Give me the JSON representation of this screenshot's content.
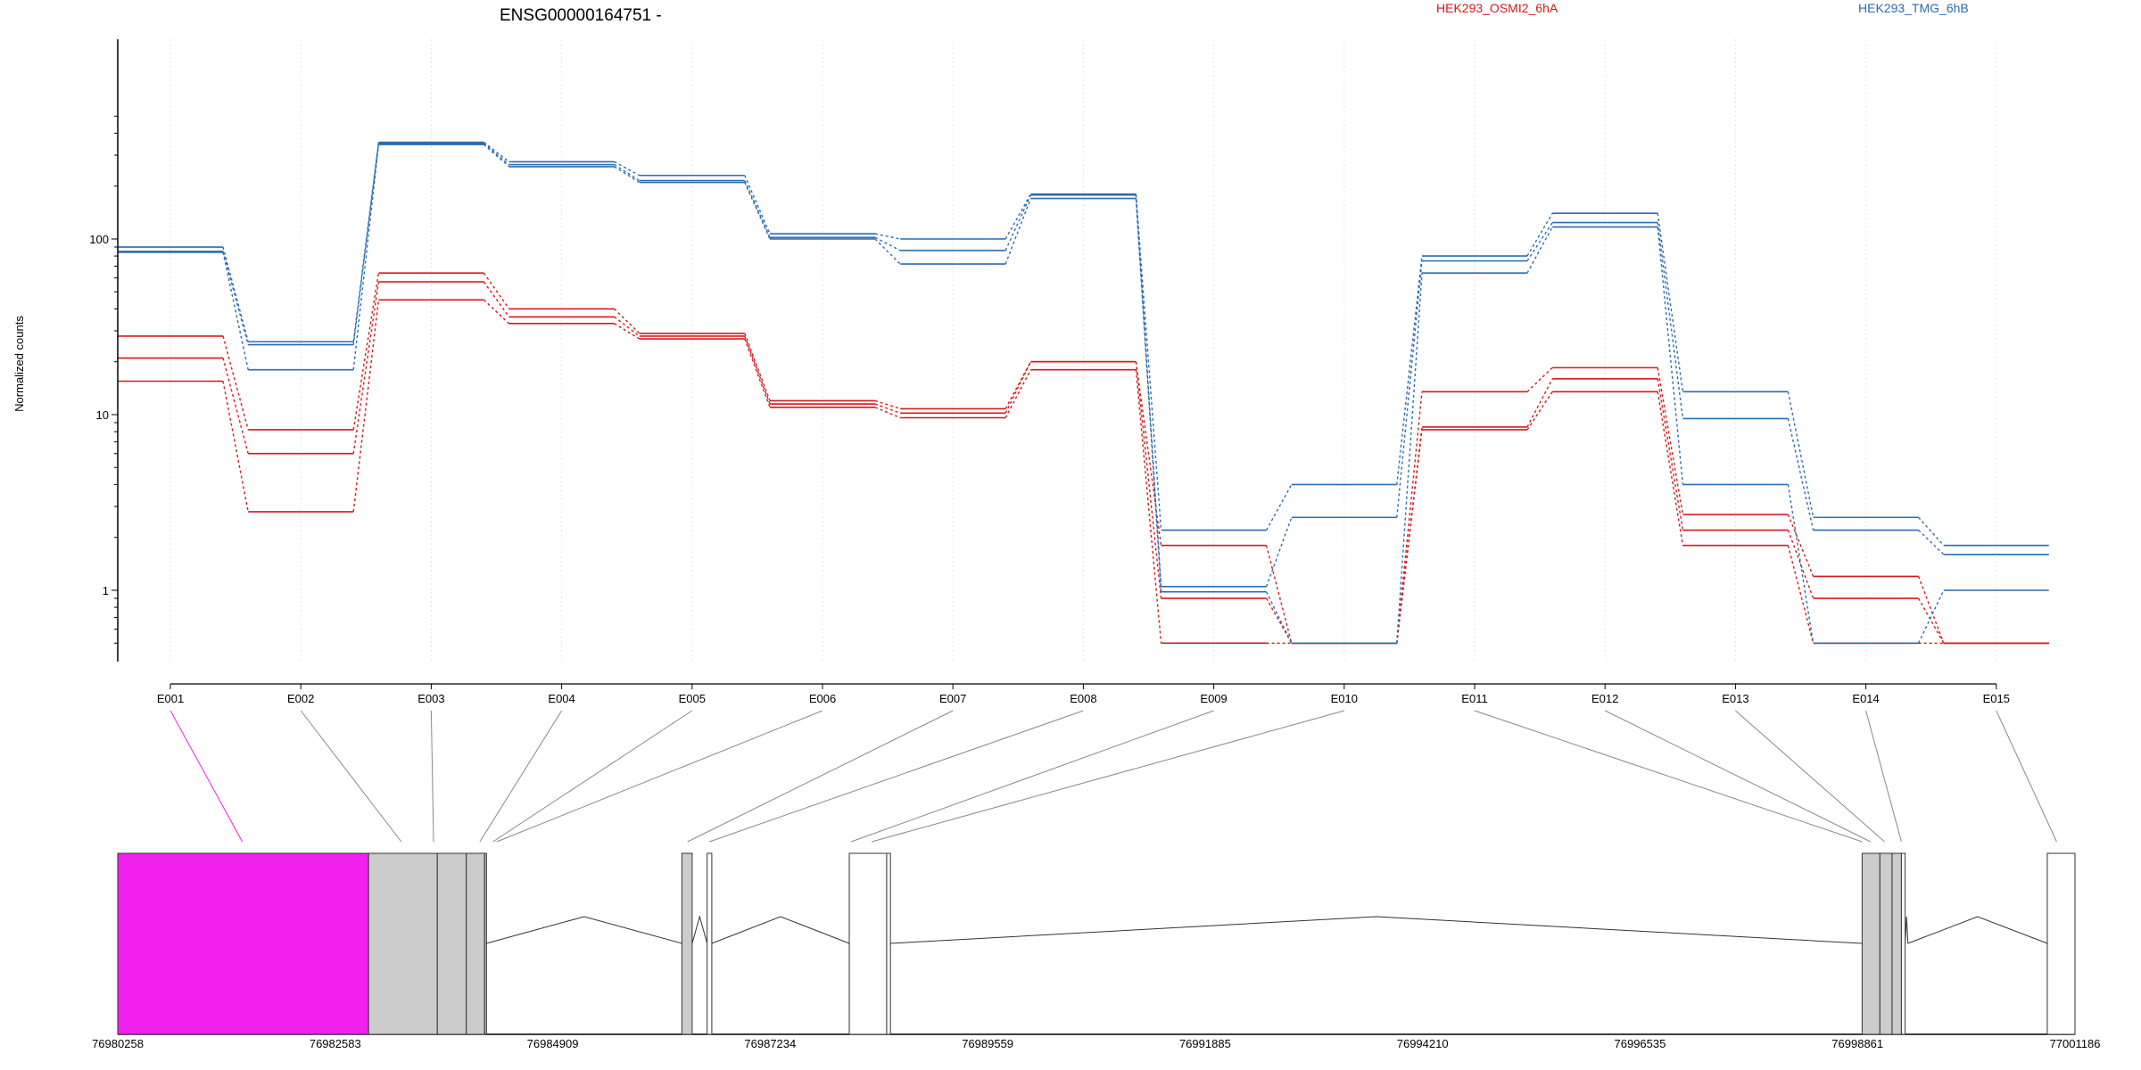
{
  "chart_data": {
    "type": "line",
    "title": "ENSG00000164751 -",
    "ylabel": "Normalized counts",
    "yscale": "log",
    "ylim": [
      0.5,
      500
    ],
    "yticks": [
      1,
      10,
      100
    ],
    "grid": "x-only",
    "legend_placement": "top",
    "categories": [
      "E001",
      "E002",
      "E003",
      "E004",
      "E005",
      "E006",
      "E007",
      "E008",
      "E009",
      "E010",
      "E011",
      "E012",
      "E013",
      "E014",
      "E015"
    ],
    "groups": [
      {
        "name": "HEK293_OSMI2_6hA",
        "color": "#d7191c"
      },
      {
        "name": "HEK293_TMG_6hB",
        "color": "#2b6cb0"
      }
    ],
    "series": [
      {
        "group": "HEK293_OSMI2_6hA",
        "values": [
          28,
          8.2,
          64,
          40,
          29,
          12,
          10.8,
          20,
          1.8,
          0.5,
          13.5,
          18.5,
          2.7,
          1.2,
          0.5
        ]
      },
      {
        "group": "HEK293_OSMI2_6hA",
        "values": [
          21,
          6.0,
          57,
          36,
          28,
          11.5,
          10.2,
          20,
          0.9,
          0.5,
          8.5,
          16,
          2.2,
          0.9,
          0.5
        ]
      },
      {
        "group": "HEK293_OSMI2_6hA",
        "values": [
          15.5,
          2.8,
          45,
          33,
          27,
          11,
          9.6,
          18,
          0.5,
          0.5,
          8.2,
          13.5,
          1.8,
          0.5,
          0.5
        ]
      },
      {
        "group": "HEK293_TMG_6hB",
        "values": [
          90,
          26,
          355,
          275,
          230,
          107,
          100,
          180,
          2.2,
          4.0,
          80,
          140,
          13.5,
          2.6,
          1.8
        ]
      },
      {
        "group": "HEK293_TMG_6hB",
        "values": [
          85,
          25,
          350,
          265,
          215,
          102,
          86,
          178,
          1.05,
          2.6,
          75,
          124,
          9.5,
          2.2,
          1.6
        ]
      },
      {
        "group": "HEK293_TMG_6hB",
        "values": [
          84,
          18,
          345,
          258,
          210,
          100,
          72,
          170,
          0.98,
          0.5,
          64,
          117,
          4.0,
          0.5,
          1.0
        ]
      }
    ],
    "gene_model": {
      "coordinate_labels": [
        "76980258",
        "76982583",
        "76984909",
        "76987234",
        "76989559",
        "76991885",
        "76994210",
        "76996535",
        "76998861",
        "77001186"
      ],
      "coord_range": [
        76980258,
        77001186
      ],
      "highlighted_exon": "E001",
      "highlight_color": "#f020ee",
      "exon_fill": "#cccccc",
      "exons": [
        {
          "id": "E001",
          "start": 76980258,
          "end": 76982940,
          "fill": "highlight",
          "label_at": 76981590
        },
        {
          "id": "E002",
          "start": 76982940,
          "end": 76983675,
          "fill": "grey",
          "label_at": 76983290
        },
        {
          "id": "E003",
          "start": 76983675,
          "end": 76983985,
          "fill": "grey",
          "label_at": 76983635
        },
        {
          "id": "E004",
          "start": 76983985,
          "end": 76984190,
          "fill": "grey",
          "label_at": 76984130
        },
        {
          "id": "E005",
          "start": 76984190,
          "end": 76984180,
          "fill": "grey",
          "label_at": 76984270
        },
        {
          "id": "E006",
          "start": 76984180,
          "end": 76984200,
          "fill": "grey",
          "label_at": 76984310
        },
        {
          "id": "E007",
          "start": 76986290,
          "end": 76986400,
          "fill": "grey",
          "label_at": 76986350
        },
        {
          "id": "E008",
          "start": 76986560,
          "end": 76986610,
          "fill": "white",
          "label_at": 76986585
        },
        {
          "id": "E009",
          "start": 76988080,
          "end": 76988480,
          "fill": "white",
          "label_at": 76988100
        },
        {
          "id": "E010",
          "start": 76988480,
          "end": 76988520,
          "fill": "white",
          "label_at": 76988320
        },
        {
          "id": "E011",
          "start": 76998910,
          "end": 76999100,
          "fill": "grey",
          "label_at": 76998910
        },
        {
          "id": "E012",
          "start": 76999100,
          "end": 76999230,
          "fill": "grey",
          "label_at": 76999000
        },
        {
          "id": "E013",
          "start": 76999230,
          "end": 76999330,
          "fill": "grey",
          "label_at": 76999150
        },
        {
          "id": "E014",
          "start": 76999330,
          "end": 76999370,
          "fill": "white",
          "label_at": 76999330
        },
        {
          "id": "E015",
          "start": 77000890,
          "end": 77001186,
          "fill": "white",
          "label_at": 77000990
        }
      ],
      "introns": [
        [
          76984200,
          76986290
        ],
        [
          76986400,
          76986560
        ],
        [
          76986610,
          76988080
        ],
        [
          76988520,
          76998910
        ],
        [
          76999370,
          76999400
        ],
        [
          76999400,
          77000890
        ]
      ]
    }
  }
}
